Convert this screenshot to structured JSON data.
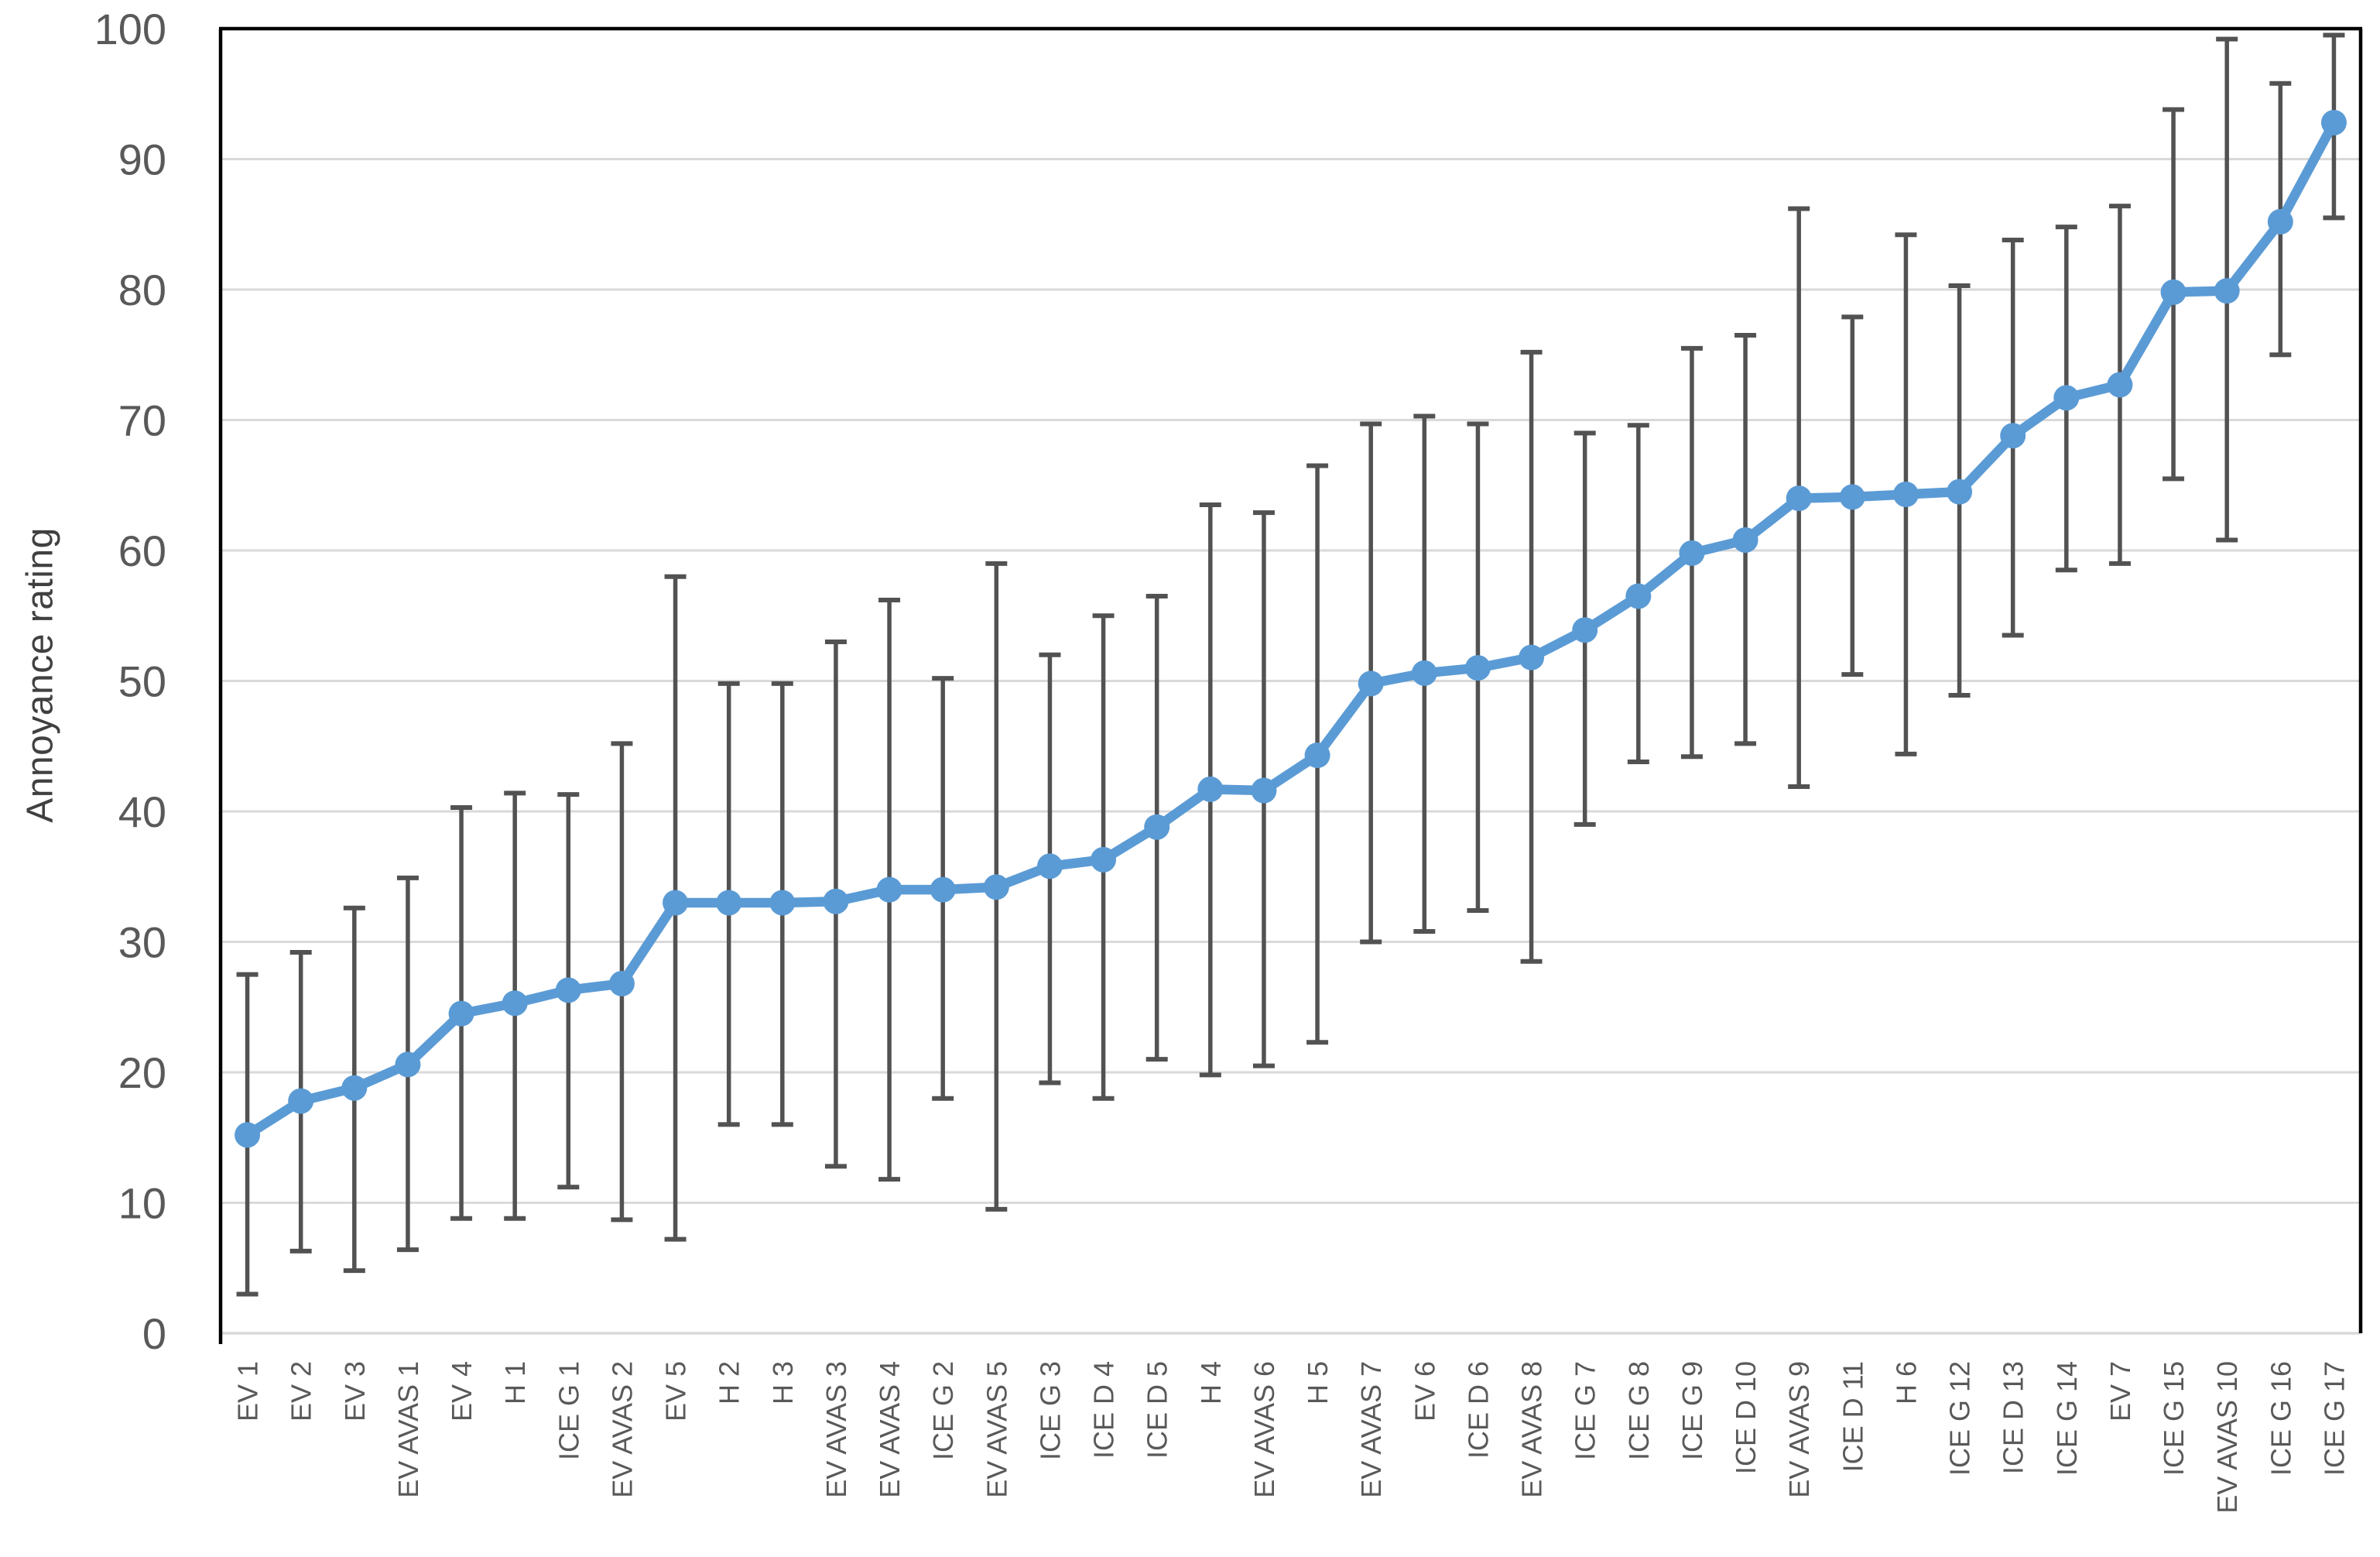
{
  "chart_data": {
    "type": "line",
    "title": "",
    "xlabel": "",
    "ylabel": "Annoyance rating",
    "ylim": [
      0,
      100
    ],
    "yticks": [
      0,
      10,
      20,
      30,
      40,
      50,
      60,
      70,
      80,
      90,
      100
    ],
    "grid": true,
    "legend_position": "none",
    "marker": "circle",
    "error_bars": "absolute_low_high",
    "categories": [
      "EV 1",
      "EV 2",
      "EV 3",
      "EV AVAS 1",
      "EV 4",
      "H 1",
      "ICE G 1",
      "EV AVAS 2",
      "EV 5",
      "H 2",
      "H 3",
      "EV AVAS 3",
      "EV AVAS 4",
      "ICE G 2",
      "EV AVAS 5",
      "ICE G 3",
      "ICE D 4",
      "ICE D 5",
      "H 4",
      "EV AVAS 6",
      "H 5",
      "EV AVAS 7",
      "EV 6",
      "ICE D 6",
      "EV AVAS 8",
      "ICE G 7",
      "ICE G 8",
      "ICE G 9",
      "ICE D 10",
      "EV AVAS 9",
      "ICE D 11",
      "H 6",
      "ICE G 12",
      "ICE D 13",
      "ICE G 14",
      "EV 7",
      "ICE G 15",
      "EV AVAS 10",
      "ICE G 16",
      "ICE G 17"
    ],
    "values": [
      15.2,
      17.8,
      18.8,
      20.6,
      24.5,
      25.3,
      26.3,
      26.8,
      33.0,
      33.0,
      33.0,
      33.1,
      34.0,
      34.0,
      34.2,
      35.8,
      36.3,
      38.8,
      41.7,
      41.6,
      44.3,
      49.8,
      50.6,
      51.0,
      51.8,
      53.9,
      56.5,
      59.8,
      60.8,
      64.0,
      64.1,
      64.3,
      64.5,
      68.8,
      71.7,
      72.7,
      79.8,
      79.9,
      85.2,
      92.8
    ],
    "error_low": [
      3.0,
      6.3,
      4.8,
      6.4,
      8.8,
      8.8,
      11.2,
      8.7,
      7.2,
      16.0,
      16.0,
      12.8,
      11.8,
      18.0,
      9.5,
      19.2,
      18.0,
      21.0,
      19.8,
      20.5,
      22.3,
      30.0,
      30.8,
      32.4,
      28.5,
      39.0,
      43.8,
      44.2,
      45.2,
      41.9,
      50.5,
      44.4,
      48.9,
      53.5,
      58.5,
      59.0,
      65.5,
      60.8,
      75.0,
      85.5
    ],
    "error_high": [
      27.5,
      29.2,
      32.6,
      34.9,
      40.3,
      41.4,
      41.3,
      45.2,
      58.0,
      49.8,
      49.8,
      53.0,
      56.2,
      50.2,
      59.0,
      52.0,
      55.0,
      56.5,
      63.5,
      62.9,
      66.5,
      69.7,
      70.3,
      69.7,
      75.2,
      69.0,
      69.6,
      75.5,
      76.5,
      86.2,
      77.9,
      84.2,
      80.3,
      83.8,
      84.8,
      86.4,
      93.8,
      99.2,
      95.8,
      99.5
    ]
  },
  "colors": {
    "line": "#5B9BD5",
    "marker": "#5B9BD5",
    "error_bar": "#525252",
    "gridline": "#D9D9D9",
    "baseline": "#D9D9D9",
    "axis_border": "#000000",
    "tick_label": "#595959",
    "category_label": "#595959",
    "axis_title": "#404040",
    "background": "#FFFFFF"
  }
}
